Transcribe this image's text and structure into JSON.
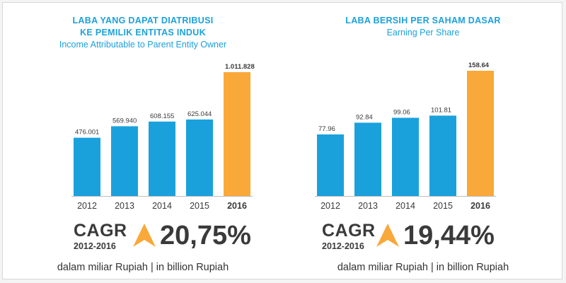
{
  "colors": {
    "bar": "#1aa1dc",
    "highlight": "#f9a83a",
    "text": "#3a3a3a",
    "title": "#1aa1dc"
  },
  "chart_data": [
    {
      "type": "bar",
      "title": "LABA YANG DAPAT DIATRIBUSI KE PEMILIK ENTITAS INDUK",
      "title_lines": [
        "LABA YANG DAPAT DIATRIBUSI",
        "KE PEMILIK ENTITAS INDUK"
      ],
      "subtitle": "Income Attributable to Parent Entity Owner",
      "categories": [
        "2012",
        "2013",
        "2014",
        "2015",
        "2016"
      ],
      "values": [
        476001,
        569940,
        608155,
        625044,
        1011828
      ],
      "value_labels": [
        "476.001",
        "569.940",
        "608.155",
        "625.044",
        "1.011.828"
      ],
      "highlight_index": 4,
      "ylim": [
        0,
        1050000
      ],
      "grid": false,
      "cagr": {
        "label": "CAGR",
        "period": "2012-2016",
        "value": "20,75%"
      },
      "unit_note": "dalam miliar Rupiah | in billion Rupiah"
    },
    {
      "type": "bar",
      "title": "LABA BERSIH PER SAHAM DASAR",
      "title_lines": [
        "LABA BERSIH PER SAHAM DASAR"
      ],
      "subtitle": "Earning Per Share",
      "categories": [
        "2012",
        "2013",
        "2014",
        "2015",
        "2016"
      ],
      "values": [
        77.96,
        92.84,
        99.06,
        101.81,
        158.64
      ],
      "value_labels": [
        "77.96",
        "92.84",
        "99.06",
        "101.81",
        "158.64"
      ],
      "highlight_index": 4,
      "ylim": [
        0,
        185
      ],
      "grid": false,
      "cagr": {
        "label": "CAGR",
        "period": "2012-2016",
        "value": "19,44%"
      },
      "unit_note": "dalam miliar Rupiah | in billion Rupiah"
    }
  ]
}
